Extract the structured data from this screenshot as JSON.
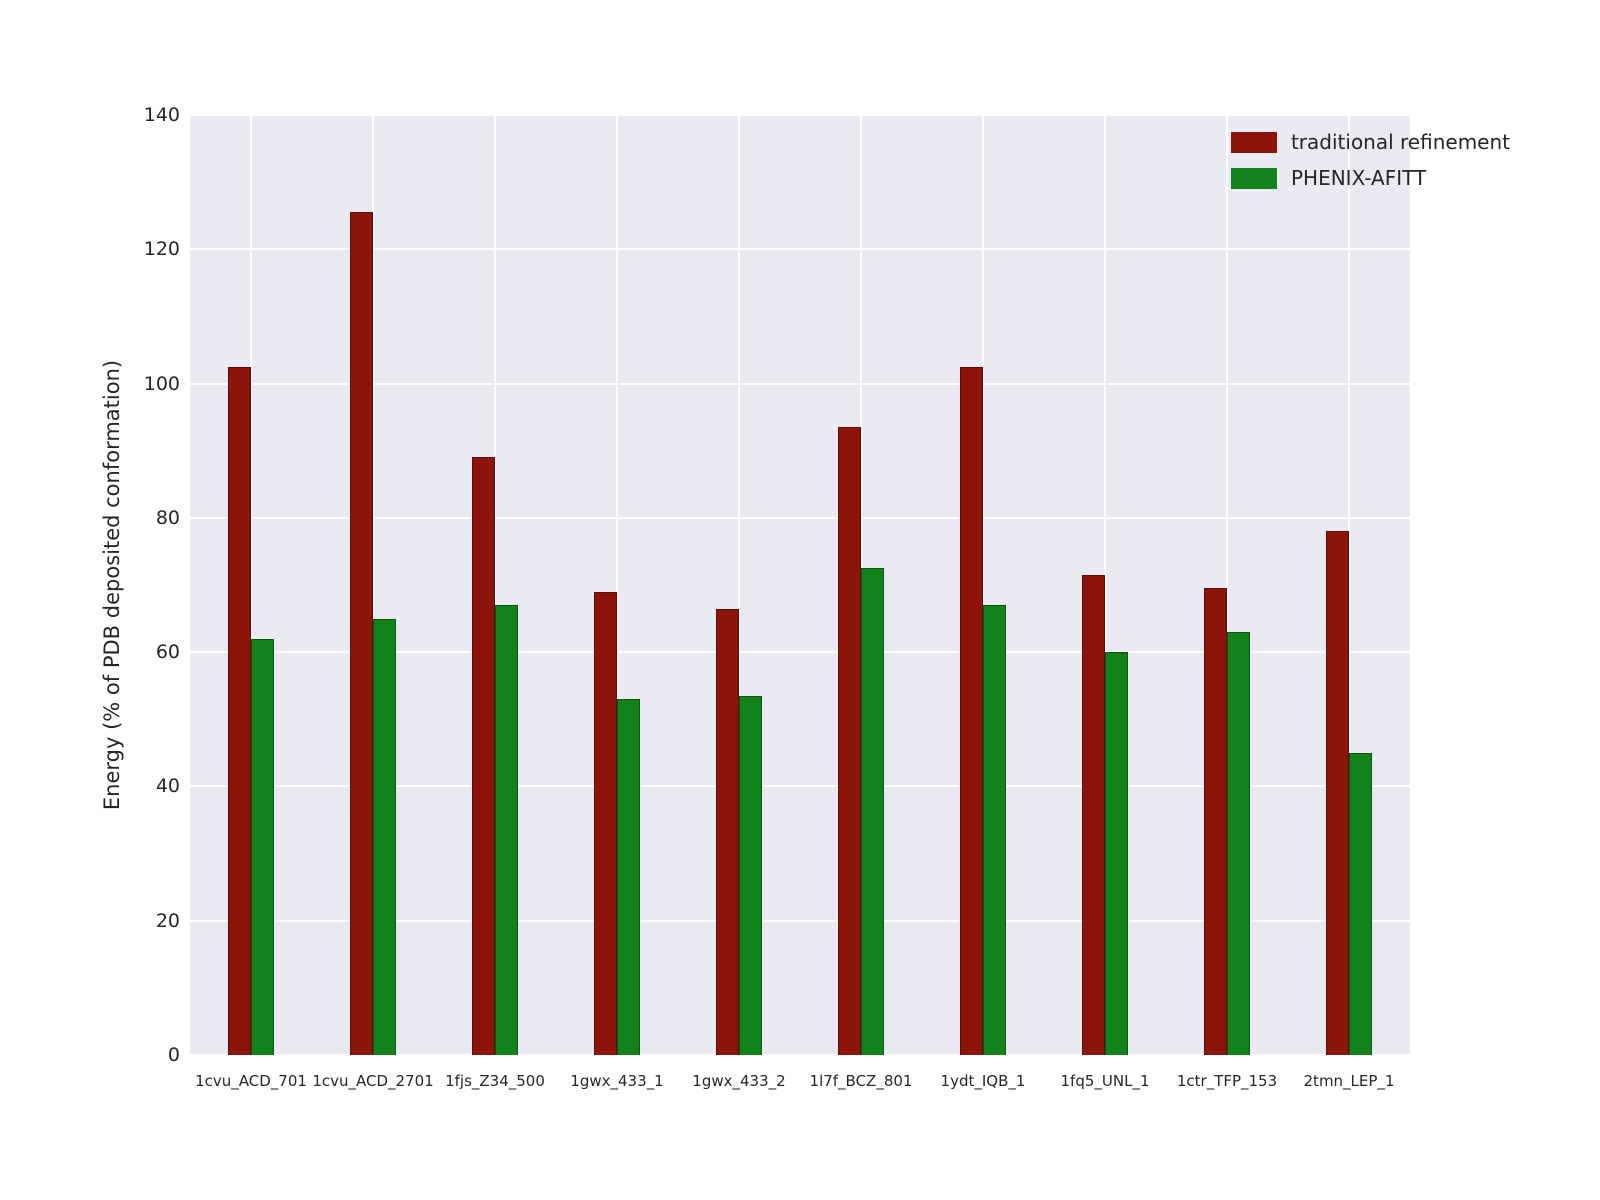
{
  "chart_data": {
    "type": "bar",
    "title": "",
    "xlabel": "",
    "ylabel": "Energy (% of PDB deposited conformation)",
    "ylim": [
      0,
      140
    ],
    "yticks": [
      0,
      20,
      40,
      60,
      80,
      100,
      120,
      140
    ],
    "grid": true,
    "legend_position": "upper right",
    "plot_background": "#eaeaf2",
    "categories": [
      "1cvu_ACD_701",
      "1cvu_ACD_2701",
      "1fjs_Z34_500",
      "1gwx_433_1",
      "1gwx_433_2",
      "1l7f_BCZ_801",
      "1ydt_IQB_1",
      "1fq5_UNL_1",
      "1ctr_TFP_153",
      "2tmn_LEP_1"
    ],
    "series": [
      {
        "name": "traditional refinement",
        "color": "#8c140a",
        "values": [
          102.5,
          125.5,
          89.0,
          69.0,
          66.5,
          93.5,
          102.5,
          71.5,
          69.5,
          78.0
        ]
      },
      {
        "name": "PHENIX-AFITT",
        "color": "#12821a",
        "values": [
          62.0,
          65.0,
          67.0,
          53.0,
          53.5,
          72.5,
          67.0,
          60.0,
          63.0,
          45.0
        ]
      }
    ]
  }
}
